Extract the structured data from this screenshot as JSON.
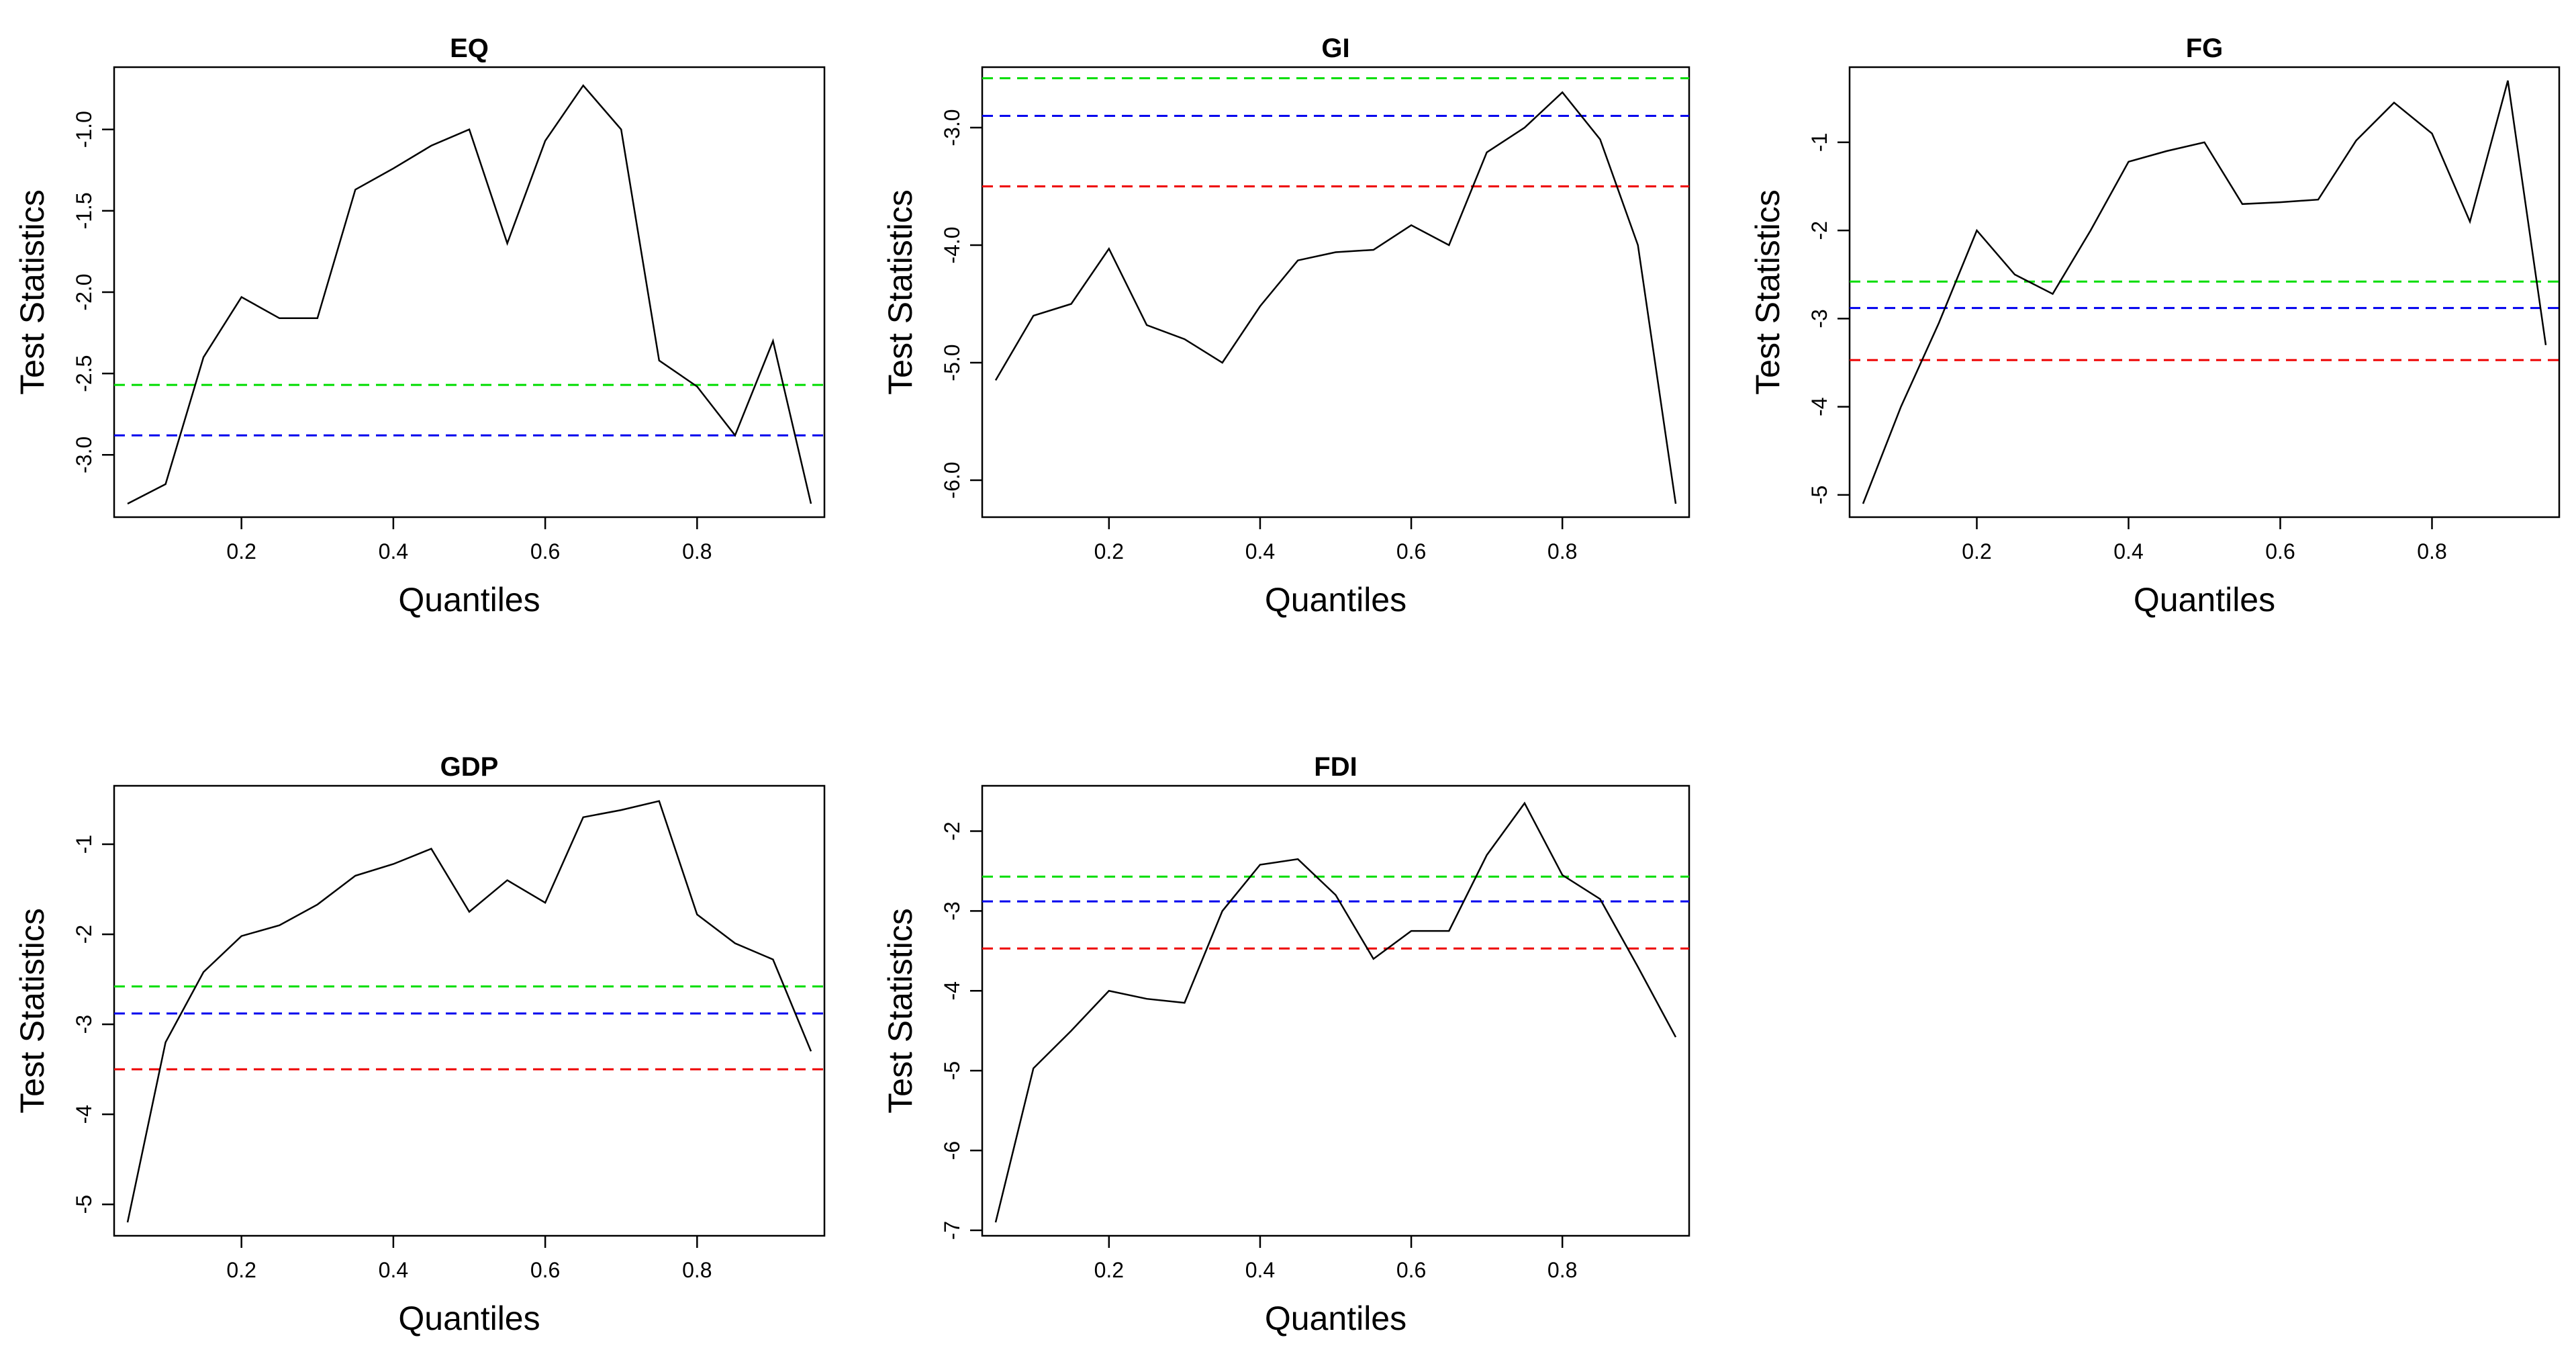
{
  "x_axis_label": "Quantiles",
  "y_axis_label": "Test Statistics",
  "x_ticks": [
    0.2,
    0.4,
    0.6,
    0.8
  ],
  "reference_line_colors": [
    "#00dd00",
    "#0000ee",
    "#ee0000"
  ],
  "line_color": "#000000",
  "chart_data": [
    {
      "type": "line",
      "title": "EQ",
      "xlabel": "Quantiles",
      "ylabel": "Test Statistics",
      "xlim": [
        0.05,
        0.95
      ],
      "ylim": [
        -3.3,
        -0.7
      ],
      "yticks": [
        -3.0,
        -2.5,
        -2.0,
        -1.5,
        -1.0
      ],
      "ytick_labels": [
        "-3.0",
        "-2.5",
        "-2.0",
        "-1.5",
        "-1.0"
      ],
      "x": [
        0.05,
        0.1,
        0.15,
        0.2,
        0.25,
        0.3,
        0.35,
        0.4,
        0.45,
        0.5,
        0.55,
        0.6,
        0.65,
        0.7,
        0.75,
        0.8,
        0.85,
        0.9,
        0.95
      ],
      "y": [
        -3.3,
        -3.18,
        -2.4,
        -2.03,
        -2.16,
        -2.16,
        -1.37,
        -1.24,
        -1.1,
        -1.0,
        -1.7,
        -1.07,
        -0.73,
        -1.0,
        -2.42,
        -2.58,
        -2.88,
        -2.3,
        -3.3
      ],
      "reference_lines": [
        -2.57,
        -2.88
      ]
    },
    {
      "type": "line",
      "title": "GI",
      "xlabel": "Quantiles",
      "ylabel": "Test Statistics",
      "xlim": [
        0.05,
        0.95
      ],
      "ylim": [
        -6.2,
        -2.6
      ],
      "yticks": [
        -6.0,
        -5.0,
        -4.0,
        -3.0
      ],
      "ytick_labels": [
        "-6.0",
        "-5.0",
        "-4.0",
        "-3.0"
      ],
      "x": [
        0.05,
        0.1,
        0.15,
        0.2,
        0.25,
        0.3,
        0.35,
        0.4,
        0.45,
        0.5,
        0.55,
        0.6,
        0.65,
        0.7,
        0.75,
        0.8,
        0.85,
        0.9,
        0.95
      ],
      "y": [
        -5.15,
        -4.6,
        -4.5,
        -4.03,
        -4.68,
        -4.8,
        -5.0,
        -4.52,
        -4.13,
        -4.06,
        -4.04,
        -3.83,
        -4.0,
        -3.21,
        -3.0,
        -2.7,
        -3.1,
        -4.0,
        -6.2
      ],
      "reference_lines": [
        -2.58,
        -2.9,
        -3.5
      ]
    },
    {
      "type": "line",
      "title": "FG",
      "xlabel": "Quantiles",
      "ylabel": "Test Statistics",
      "xlim": [
        0.05,
        0.95
      ],
      "ylim": [
        -5.1,
        -0.3
      ],
      "yticks": [
        -5,
        -4,
        -3,
        -2,
        -1
      ],
      "ytick_labels": [
        "-5",
        "-4",
        "-3",
        "-2",
        "-1"
      ],
      "x": [
        0.05,
        0.1,
        0.15,
        0.2,
        0.25,
        0.3,
        0.35,
        0.4,
        0.45,
        0.5,
        0.55,
        0.6,
        0.65,
        0.7,
        0.75,
        0.8,
        0.85,
        0.9,
        0.95
      ],
      "y": [
        -5.1,
        -4.0,
        -3.05,
        -2.0,
        -2.5,
        -2.72,
        -2.0,
        -1.22,
        -1.1,
        -1.0,
        -1.7,
        -1.68,
        -1.65,
        -0.98,
        -0.55,
        -0.9,
        -1.9,
        -0.3,
        -3.3
      ],
      "reference_lines": [
        -2.58,
        -2.88,
        -3.47
      ]
    },
    {
      "type": "line",
      "title": "GDP",
      "xlabel": "Quantiles",
      "ylabel": "Test Statistics",
      "xlim": [
        0.05,
        0.95
      ],
      "ylim": [
        -5.2,
        -0.5
      ],
      "yticks": [
        -5,
        -4,
        -3,
        -2,
        -1
      ],
      "ytick_labels": [
        "-5",
        "-4",
        "-3",
        "-2",
        "-1"
      ],
      "x": [
        0.05,
        0.1,
        0.15,
        0.2,
        0.25,
        0.3,
        0.35,
        0.4,
        0.45,
        0.5,
        0.55,
        0.6,
        0.65,
        0.7,
        0.75,
        0.8,
        0.85,
        0.9,
        0.95
      ],
      "y": [
        -5.2,
        -3.2,
        -2.42,
        -2.02,
        -1.9,
        -1.67,
        -1.35,
        -1.22,
        -1.05,
        -1.75,
        -1.4,
        -1.65,
        -0.7,
        -0.62,
        -0.52,
        -1.78,
        -2.1,
        -2.28,
        -3.3
      ],
      "reference_lines": [
        -2.58,
        -2.88,
        -3.5
      ]
    },
    {
      "type": "line",
      "title": "FDI",
      "xlabel": "Quantiles",
      "ylabel": "Test Statistics",
      "xlim": [
        0.05,
        0.95
      ],
      "ylim": [
        -6.9,
        -1.6
      ],
      "yticks": [
        -7,
        -6,
        -5,
        -4,
        -3,
        -2
      ],
      "ytick_labels": [
        "-7",
        "-6",
        "-5",
        "-4",
        "-3",
        "-2"
      ],
      "x": [
        0.05,
        0.1,
        0.15,
        0.2,
        0.25,
        0.3,
        0.35,
        0.4,
        0.45,
        0.5,
        0.55,
        0.6,
        0.65,
        0.7,
        0.75,
        0.8,
        0.85,
        0.9,
        0.95
      ],
      "y": [
        -6.9,
        -4.97,
        -4.5,
        -4.0,
        -4.1,
        -4.15,
        -3.0,
        -2.42,
        -2.35,
        -2.8,
        -3.6,
        -3.25,
        -3.25,
        -2.3,
        -1.65,
        -2.55,
        -2.85,
        -3.7,
        -4.58
      ],
      "reference_lines": [
        -2.57,
        -2.88,
        -3.47
      ]
    }
  ]
}
